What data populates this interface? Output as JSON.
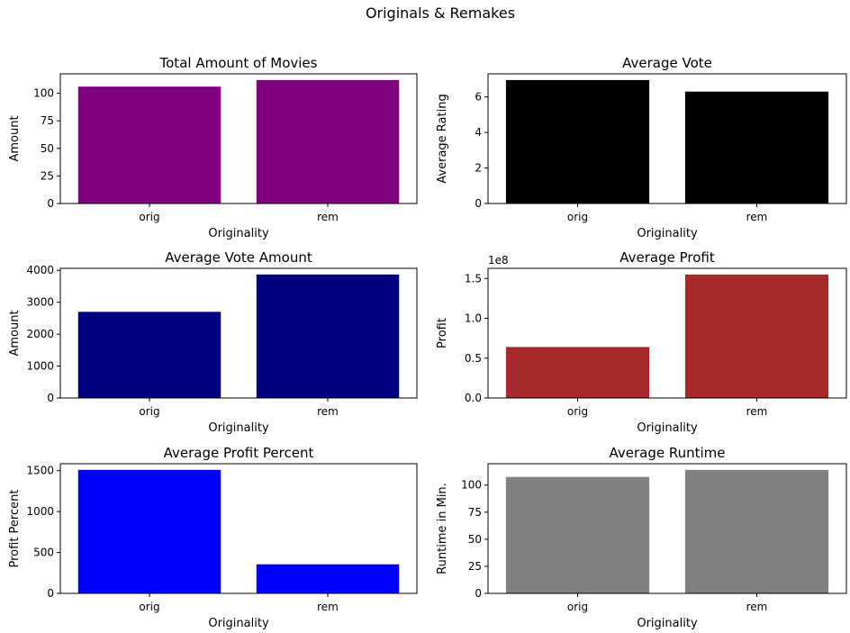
{
  "figure": {
    "suptitle": "Originals & Remakes"
  },
  "chart_data": [
    {
      "type": "bar",
      "title": "Total Amount of Movies",
      "xlabel": "Originality",
      "ylabel": "Amount",
      "categories": [
        "orig",
        "rem"
      ],
      "values": [
        106,
        112
      ],
      "ylim": [
        0,
        117.6
      ],
      "yticks": [
        0,
        25,
        50,
        75,
        100
      ],
      "ytick_labels": [
        "0",
        "25",
        "50",
        "75",
        "100"
      ],
      "offset_text": "",
      "color": "#800080",
      "grid": false
    },
    {
      "type": "bar",
      "title": "Average Vote",
      "xlabel": "Originality",
      "ylabel": "Average Rating",
      "categories": [
        "orig",
        "rem"
      ],
      "values": [
        6.95,
        6.3
      ],
      "ylim": [
        0,
        7.3
      ],
      "yticks": [
        0,
        2,
        4,
        6
      ],
      "ytick_labels": [
        "0",
        "2",
        "4",
        "6"
      ],
      "offset_text": "",
      "color": "#000000",
      "grid": false
    },
    {
      "type": "bar",
      "title": "Average Vote Amount",
      "xlabel": "Originality",
      "ylabel": "Amount",
      "categories": [
        "orig",
        "rem"
      ],
      "values": [
        2700,
        3870
      ],
      "ylim": [
        0,
        4063
      ],
      "yticks": [
        0,
        1000,
        2000,
        3000,
        4000
      ],
      "ytick_labels": [
        "0",
        "1000",
        "2000",
        "3000",
        "4000"
      ],
      "offset_text": "",
      "color": "#000080",
      "grid": false
    },
    {
      "type": "bar",
      "title": "Average Profit",
      "xlabel": "Originality",
      "ylabel": "Profit",
      "categories": [
        "orig",
        "rem"
      ],
      "values": [
        64000000,
        155000000
      ],
      "ylim": [
        0,
        162750000
      ],
      "yticks": [
        0,
        50000000,
        100000000,
        150000000
      ],
      "ytick_labels": [
        "0.0",
        "0.5",
        "1.0",
        "1.5"
      ],
      "offset_text": "1e8",
      "color": "#a52a2a",
      "grid": false
    },
    {
      "type": "bar",
      "title": "Average Profit Percent",
      "xlabel": "Originality",
      "ylabel": "Profit Percent",
      "categories": [
        "orig",
        "rem"
      ],
      "values": [
        1510,
        355
      ],
      "ylim": [
        0,
        1585
      ],
      "yticks": [
        0,
        500,
        1000,
        1500
      ],
      "ytick_labels": [
        "0",
        "500",
        "1000",
        "1500"
      ],
      "offset_text": "",
      "color": "#0000ff",
      "grid": false
    },
    {
      "type": "bar",
      "title": "Average Runtime",
      "xlabel": "Originality",
      "ylabel": "Runtime in Min.",
      "categories": [
        "orig",
        "rem"
      ],
      "values": [
        107.5,
        114
      ],
      "ylim": [
        0,
        119.7
      ],
      "yticks": [
        0,
        25,
        50,
        75,
        100
      ],
      "ytick_labels": [
        "0",
        "25",
        "50",
        "75",
        "100"
      ],
      "offset_text": "",
      "color": "#808080",
      "grid": false
    }
  ]
}
